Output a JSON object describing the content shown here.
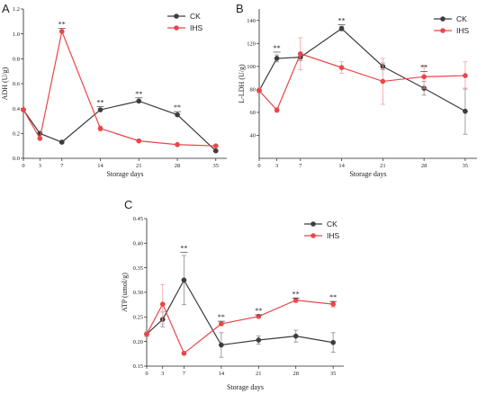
{
  "colors": {
    "ck": "#3d3d3d",
    "ihs": "#e8474a",
    "axis": "#222222",
    "ck_err": "#8a8a8a",
    "ihs_err": "#f0a0a0"
  },
  "legend": {
    "ck": "CK",
    "ihs": "IHS"
  },
  "chart_data": [
    {
      "type": "line",
      "panel_label": "A",
      "title": "",
      "xlabel": "Storage days",
      "ylabel": "ADH (U/g)",
      "x": [
        0,
        3,
        7,
        14,
        21,
        28,
        35
      ],
      "x_tick_labels": [
        "0",
        "3",
        "7",
        "14",
        "21",
        "28",
        "35"
      ],
      "ylim": [
        0,
        1.2
      ],
      "y_ticks": [
        0.0,
        0.2,
        0.4,
        0.6,
        0.8,
        1.0,
        1.2
      ],
      "y_tick_labels": [
        "0.0",
        "0.2",
        "0.4",
        "0.6",
        "0.8",
        "1.0",
        "1.2"
      ],
      "grid": false,
      "legend_position": "top-right",
      "series": [
        {
          "name": "CK",
          "values": [
            0.39,
            0.2,
            0.13,
            0.39,
            0.46,
            0.35,
            0.06
          ],
          "errors": [
            0.01,
            0.01,
            0.01,
            0.01,
            0.01,
            0.01,
            0.01
          ]
        },
        {
          "name": "IHS",
          "values": [
            0.39,
            0.16,
            1.02,
            0.24,
            0.14,
            0.11,
            0.1
          ],
          "errors": [
            0.01,
            0.01,
            0.01,
            0.02,
            0.01,
            0.01,
            0.01
          ]
        }
      ],
      "significance": [
        {
          "x": 7,
          "y": 1.06,
          "label": "**"
        },
        {
          "x": 14,
          "y": 0.43,
          "label": "**"
        },
        {
          "x": 21,
          "y": 0.5,
          "label": "**"
        },
        {
          "x": 28,
          "y": 0.39,
          "label": "**"
        }
      ]
    },
    {
      "type": "line",
      "panel_label": "B",
      "title": "",
      "xlabel": "Storage days",
      "ylabel": "L-LDH (U/g)",
      "x": [
        0,
        3,
        7,
        14,
        21,
        28,
        35
      ],
      "x_tick_labels": [
        "0",
        "3",
        "7",
        "14",
        "21",
        "28",
        "35"
      ],
      "ylim": [
        20,
        150
      ],
      "y_ticks": [
        40,
        60,
        80,
        100,
        120,
        140
      ],
      "y_tick_labels": [
        "40",
        "60",
        "80",
        "100",
        "120",
        "140"
      ],
      "grid": false,
      "legend_position": "top-right",
      "series": [
        {
          "name": "CK",
          "values": [
            79,
            107,
            108,
            133,
            100,
            81,
            61
          ],
          "errors": [
            2,
            3,
            3,
            2,
            3,
            6,
            20
          ]
        },
        {
          "name": "IHS",
          "values": [
            79,
            62,
            111,
            99,
            87,
            91,
            92
          ],
          "errors": [
            2,
            2,
            14,
            5,
            20,
            10,
            12
          ]
        }
      ],
      "significance": [
        {
          "x": 3,
          "y": 114,
          "label": "**"
        },
        {
          "x": 14,
          "y": 138,
          "label": "**"
        },
        {
          "x": 28,
          "y": 97,
          "label": "**"
        }
      ]
    },
    {
      "type": "line",
      "panel_label": "C",
      "title": "",
      "xlabel": "Storage days",
      "ylabel": "ATP (umol/g)",
      "x": [
        0,
        3,
        7,
        14,
        21,
        28,
        35
      ],
      "x_tick_labels": [
        "0",
        "3",
        "7",
        "14",
        "21",
        "28",
        "35"
      ],
      "ylim": [
        0.15,
        0.45
      ],
      "y_ticks": [
        0.15,
        0.2,
        0.25,
        0.3,
        0.35,
        0.4,
        0.45
      ],
      "y_tick_labels": [
        "0.15",
        "0.20",
        "0.25",
        "0.30",
        "0.35",
        "0.40",
        "0.45"
      ],
      "grid": false,
      "legend_position": "top-right",
      "series": [
        {
          "name": "CK",
          "values": [
            0.215,
            0.245,
            0.325,
            0.193,
            0.203,
            0.211,
            0.198
          ],
          "errors": [
            0.005,
            0.015,
            0.05,
            0.025,
            0.008,
            0.012,
            0.02
          ]
        },
        {
          "name": "IHS",
          "values": [
            0.215,
            0.276,
            0.176,
            0.236,
            0.251,
            0.284,
            0.276
          ],
          "errors": [
            0.005,
            0.04,
            0.003,
            0.003,
            0.003,
            0.005,
            0.006
          ]
        }
      ],
      "significance": [
        {
          "x": 7,
          "y": 0.385,
          "label": "**"
        },
        {
          "x": 14,
          "y": 0.245,
          "label": "**"
        },
        {
          "x": 21,
          "y": 0.258,
          "label": "**"
        },
        {
          "x": 28,
          "y": 0.292,
          "label": "**"
        },
        {
          "x": 35,
          "y": 0.285,
          "label": "**"
        }
      ]
    }
  ]
}
